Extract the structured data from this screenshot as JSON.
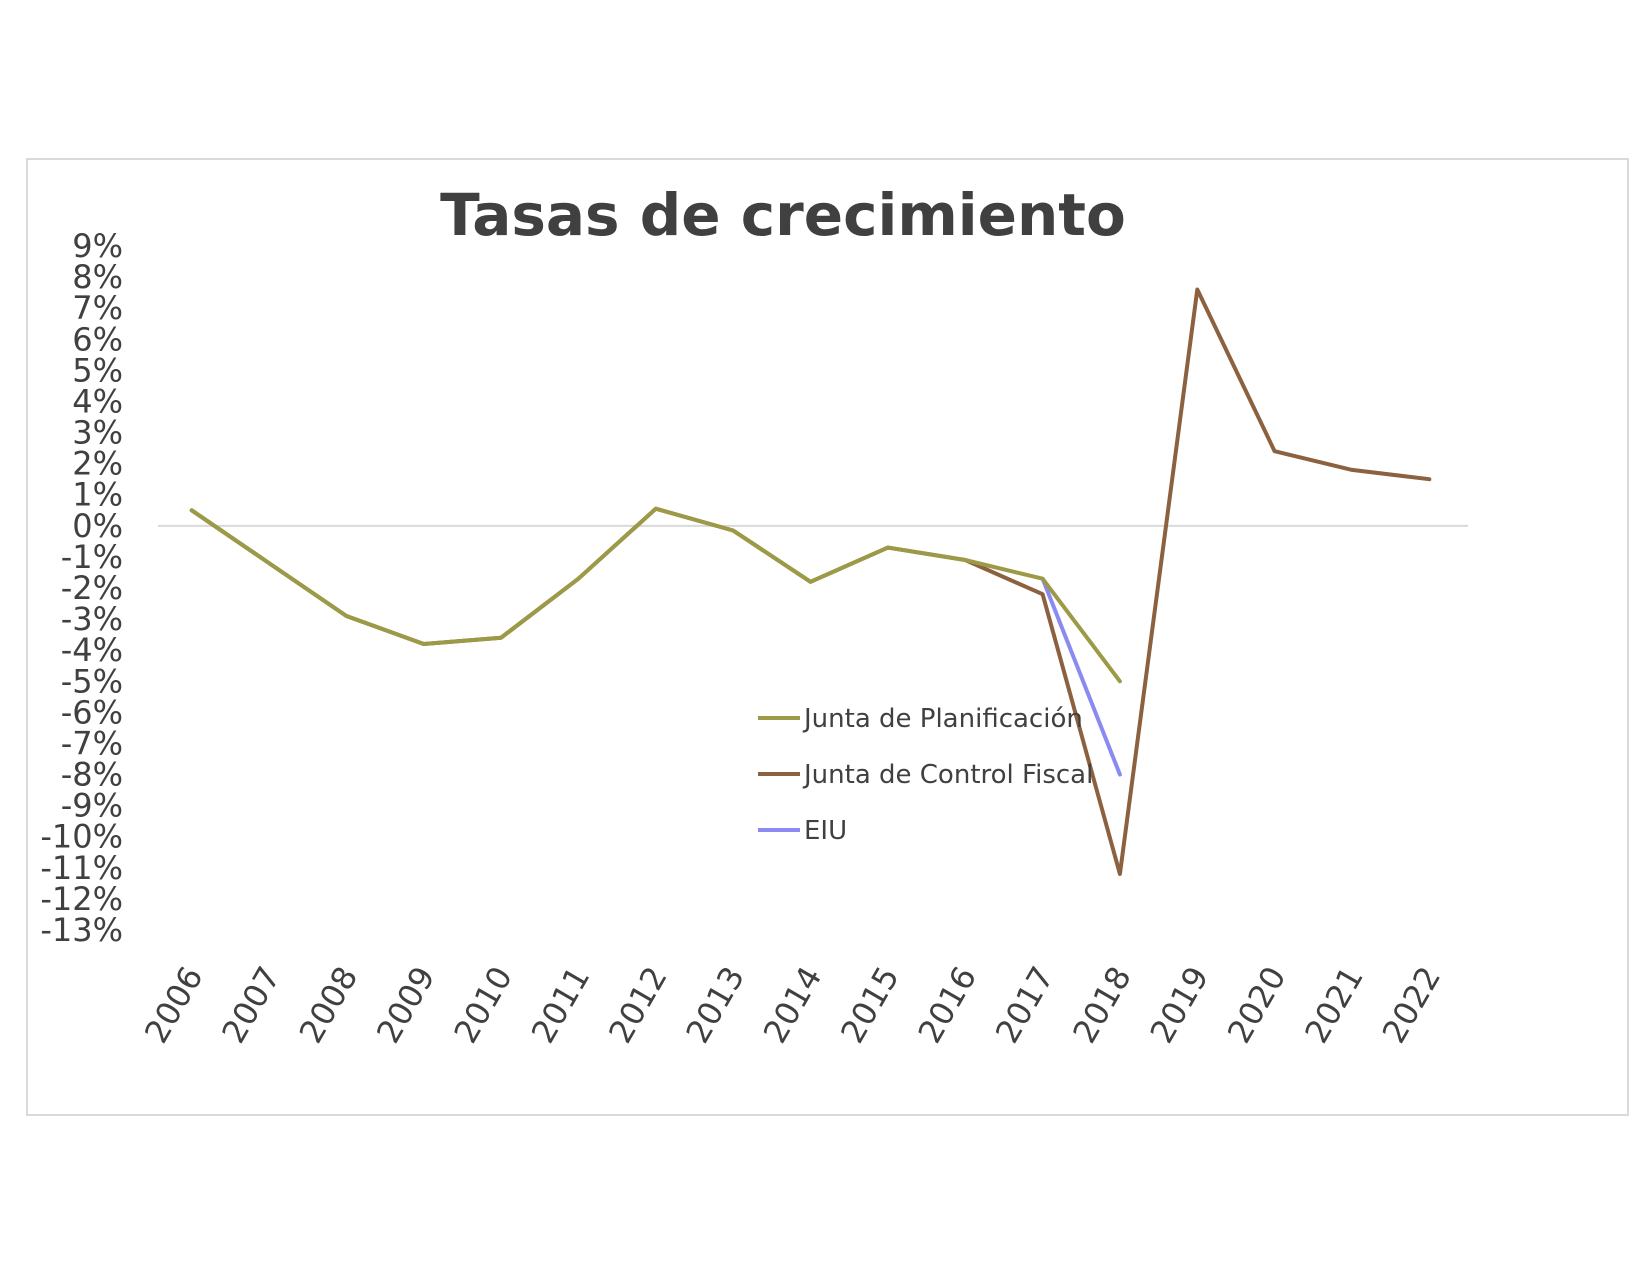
{
  "chart_data": {
    "type": "line",
    "title": "Tasas de crecimiento",
    "xlabel": "",
    "ylabel": "",
    "x": [
      "2006",
      "2007",
      "2008",
      "2009",
      "2010",
      "2011",
      "2012",
      "2013",
      "2014",
      "2015",
      "2016",
      "2017",
      "2018",
      "2019",
      "2020",
      "2021",
      "2022"
    ],
    "ylim": [
      -13,
      9
    ],
    "yticks": [
      "9%",
      "8%",
      "7%",
      "6%",
      "5%",
      "4%",
      "3%",
      "2%",
      "1%",
      "0%",
      "-1%",
      "-2%",
      "-3%",
      "-4%",
      "-5%",
      "-6%",
      "-7%",
      "-8%",
      "-9%",
      "-10%",
      "-11%",
      "-12%",
      "-13%"
    ],
    "grid": false,
    "zero_line": true,
    "legend_position": "inside-lower-center",
    "series": [
      {
        "name": "Junta de Control Fiscal",
        "color": "#8B6140",
        "values": [
          0.5,
          -1.2,
          -2.9,
          -3.8,
          -3.6,
          -1.7,
          0.55,
          -0.15,
          -1.8,
          -0.7,
          -1.1,
          -2.2,
          -11.2,
          7.6,
          2.4,
          1.8,
          1.5
        ]
      },
      {
        "name": "EIU",
        "color": "#8A8AF0",
        "values": [
          null,
          null,
          null,
          null,
          null,
          null,
          null,
          null,
          null,
          null,
          null,
          -1.7,
          -8.0,
          null,
          null,
          null,
          null
        ]
      },
      {
        "name": "Junta de Planificación",
        "color": "#9C9A46",
        "values": [
          0.5,
          -1.2,
          -2.9,
          -3.8,
          -3.6,
          -1.7,
          0.55,
          -0.15,
          -1.8,
          -0.7,
          -1.1,
          -1.7,
          -5.0,
          null,
          null,
          null,
          null
        ]
      }
    ],
    "legend_order": [
      "Junta de Planificación",
      "Junta de Control Fiscal",
      "EIU"
    ]
  }
}
